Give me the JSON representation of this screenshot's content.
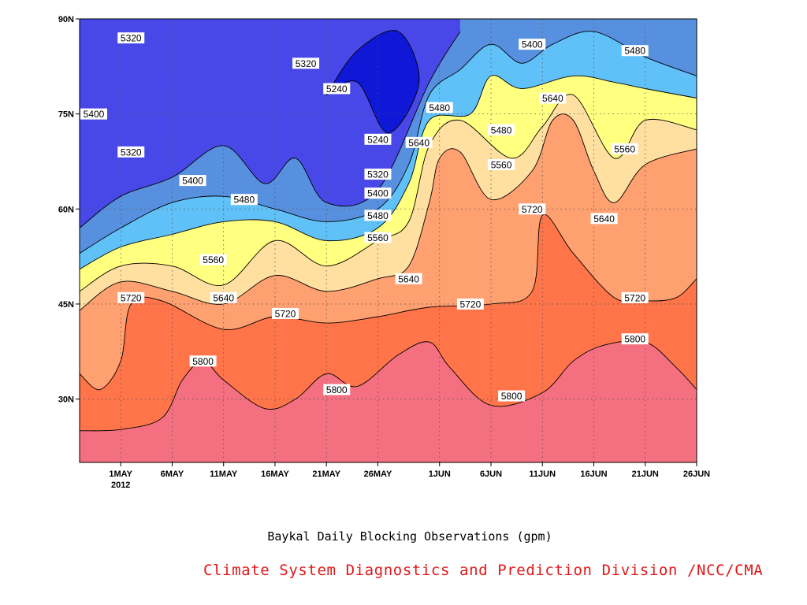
{
  "chart_data": {
    "type": "contour",
    "title": "",
    "caption": "Baykal Daily Blocking Observations (gpm)",
    "credit": "Climate System Diagnostics and Prediction Division /NCC/CMA",
    "x_axis": {
      "start": "2012-04-27",
      "end": "2012-06-26",
      "ticks": [
        {
          "label": "1MAY",
          "sublabel": "2012",
          "date": "2012-05-01"
        },
        {
          "label": "6MAY",
          "sublabel": "",
          "date": "2012-05-06"
        },
        {
          "label": "11MAY",
          "sublabel": "",
          "date": "2012-05-11"
        },
        {
          "label": "16MAY",
          "sublabel": "",
          "date": "2012-05-16"
        },
        {
          "label": "21MAY",
          "sublabel": "",
          "date": "2012-05-21"
        },
        {
          "label": "26MAY",
          "sublabel": "",
          "date": "2012-05-26"
        },
        {
          "label": "1JUN",
          "sublabel": "",
          "date": "2012-06-01"
        },
        {
          "label": "6JUN",
          "sublabel": "",
          "date": "2012-06-06"
        },
        {
          "label": "11JUN",
          "sublabel": "",
          "date": "2012-06-11"
        },
        {
          "label": "16JUN",
          "sublabel": "",
          "date": "2012-06-16"
        },
        {
          "label": "21JUN",
          "sublabel": "",
          "date": "2012-06-21"
        },
        {
          "label": "26JUN",
          "sublabel": "",
          "date": "2012-06-26"
        }
      ]
    },
    "y_axis": {
      "range": [
        20,
        90
      ],
      "ticks": [
        {
          "label": "30N",
          "value": 30
        },
        {
          "label": "45N",
          "value": 45
        },
        {
          "label": "60N",
          "value": 60
        },
        {
          "label": "75N",
          "value": 75
        },
        {
          "label": "90N",
          "value": 90
        }
      ]
    },
    "grid": true,
    "levels": [
      5240,
      5320,
      5400,
      5480,
      5560,
      5640,
      5720,
      5800
    ],
    "fill_colors": {
      "below_5240": "#1018d8",
      "5240_5320": "#4848e8",
      "5320_5400": "#5890e0",
      "5400_5480": "#60c0f8",
      "5480_5560": "#ffff80",
      "5560_5640": "#ffe0a0",
      "5640_5720": "#ffa070",
      "5720_5800": "#ff7448",
      "above_5800": "#f47080"
    },
    "contours": [
      {
        "value": 5800,
        "points": [
          [
            "2012-04-27",
            25
          ],
          [
            "2012-05-01",
            25.2
          ],
          [
            "2012-05-05",
            27
          ],
          [
            "2012-05-07",
            33
          ],
          [
            "2012-05-09",
            36
          ],
          [
            "2012-05-11",
            33
          ],
          [
            "2012-05-15",
            28.5
          ],
          [
            "2012-05-18",
            30
          ],
          [
            "2012-05-21",
            34
          ],
          [
            "2012-05-24",
            32
          ],
          [
            "2012-05-28",
            37
          ],
          [
            "2012-05-31",
            39
          ],
          [
            "2012-06-02",
            35
          ],
          [
            "2012-06-06",
            29
          ],
          [
            "2012-06-11",
            31
          ],
          [
            "2012-06-14",
            36
          ],
          [
            "2012-06-17",
            38.5
          ],
          [
            "2012-06-21",
            39
          ],
          [
            "2012-06-24",
            35
          ],
          [
            "2012-06-26",
            31.5
          ]
        ]
      },
      {
        "value": 5720,
        "points": [
          [
            "2012-04-27",
            34
          ],
          [
            "2012-04-29",
            31.5
          ],
          [
            "2012-05-01",
            36
          ],
          [
            "2012-05-02",
            45
          ],
          [
            "2012-05-05",
            45.5
          ],
          [
            "2012-05-11",
            41
          ],
          [
            "2012-05-16",
            43
          ],
          [
            "2012-05-21",
            42
          ],
          [
            "2012-05-26",
            43
          ],
          [
            "2012-05-31",
            44.5
          ],
          [
            "2012-06-06",
            45
          ],
          [
            "2012-06-10",
            47
          ],
          [
            "2012-06-11",
            59
          ],
          [
            "2012-06-14",
            53
          ],
          [
            "2012-06-18",
            46
          ],
          [
            "2012-06-21",
            45.5
          ],
          [
            "2012-06-24",
            46
          ],
          [
            "2012-06-26",
            49
          ]
        ]
      },
      {
        "value": 5640,
        "points": [
          [
            "2012-04-27",
            44
          ],
          [
            "2012-05-01",
            48.5
          ],
          [
            "2012-05-06",
            47
          ],
          [
            "2012-05-11",
            45
          ],
          [
            "2012-05-16",
            49.5
          ],
          [
            "2012-05-21",
            47
          ],
          [
            "2012-05-26",
            49
          ],
          [
            "2012-05-29",
            51
          ],
          [
            "2012-05-31",
            61
          ],
          [
            "2012-06-01",
            68
          ],
          [
            "2012-06-03",
            69
          ],
          [
            "2012-06-06",
            61.5
          ],
          [
            "2012-06-10",
            66
          ],
          [
            "2012-06-12",
            74
          ],
          [
            "2012-06-14",
            74
          ],
          [
            "2012-06-16",
            66
          ],
          [
            "2012-06-18",
            61
          ],
          [
            "2012-06-21",
            67
          ],
          [
            "2012-06-26",
            69.5
          ]
        ]
      },
      {
        "value": 5560,
        "points": [
          [
            "2012-04-27",
            47
          ],
          [
            "2012-05-01",
            51
          ],
          [
            "2012-05-06",
            51
          ],
          [
            "2012-05-11",
            48
          ],
          [
            "2012-05-16",
            55
          ],
          [
            "2012-05-21",
            51
          ],
          [
            "2012-05-26",
            55
          ],
          [
            "2012-05-29",
            58
          ],
          [
            "2012-05-31",
            70
          ],
          [
            "2012-06-03",
            74
          ],
          [
            "2012-06-08",
            68
          ],
          [
            "2012-06-11",
            73
          ],
          [
            "2012-06-14",
            78
          ],
          [
            "2012-06-18",
            68
          ],
          [
            "2012-06-21",
            74
          ],
          [
            "2012-06-26",
            72.5
          ]
        ]
      },
      {
        "value": 5480,
        "points": [
          [
            "2012-04-27",
            50.5
          ],
          [
            "2012-05-01",
            54
          ],
          [
            "2012-05-06",
            56
          ],
          [
            "2012-05-11",
            58
          ],
          [
            "2012-05-16",
            58
          ],
          [
            "2012-05-21",
            55
          ],
          [
            "2012-05-26",
            57
          ],
          [
            "2012-05-29",
            64
          ],
          [
            "2012-05-31",
            74
          ],
          [
            "2012-06-04",
            75
          ],
          [
            "2012-06-06",
            81
          ],
          [
            "2012-06-09",
            79
          ],
          [
            "2012-06-14",
            81
          ],
          [
            "2012-06-18",
            80
          ],
          [
            "2012-06-21",
            79
          ],
          [
            "2012-06-26",
            77.5
          ]
        ]
      },
      {
        "value": 5400,
        "points": [
          [
            "2012-04-27",
            53
          ],
          [
            "2012-05-01",
            57
          ],
          [
            "2012-05-06",
            61
          ],
          [
            "2012-05-11",
            62
          ],
          [
            "2012-05-16",
            60
          ],
          [
            "2012-05-21",
            58
          ],
          [
            "2012-05-26",
            60
          ],
          [
            "2012-05-29",
            67
          ],
          [
            "2012-05-31",
            78
          ],
          [
            "2012-06-03",
            82
          ],
          [
            "2012-06-06",
            86
          ],
          [
            "2012-06-09",
            83
          ],
          [
            "2012-06-12",
            86
          ],
          [
            "2012-06-16",
            88
          ],
          [
            "2012-06-21",
            84
          ],
          [
            "2012-06-26",
            81
          ]
        ]
      },
      {
        "value": 5320,
        "points": [
          [
            "2012-04-27",
            57
          ],
          [
            "2012-05-01",
            62
          ],
          [
            "2012-05-06",
            65
          ],
          [
            "2012-05-11",
            70
          ],
          [
            "2012-05-15",
            64
          ],
          [
            "2012-05-18",
            68
          ],
          [
            "2012-05-21",
            61
          ],
          [
            "2012-05-26",
            63
          ],
          [
            "2012-05-31",
            80
          ],
          [
            "2012-06-03",
            88
          ]
        ]
      },
      {
        "value": 5240,
        "points": [
          [
            "2012-05-21",
            78
          ],
          [
            "2012-05-24",
            80
          ],
          [
            "2012-05-27",
            72
          ],
          [
            "2012-05-30",
            80
          ],
          [
            "2012-05-28",
            88
          ],
          [
            "2012-05-24",
            85
          ]
        ]
      }
    ],
    "contour_labels": [
      {
        "text": "5320",
        "date": "2012-05-02",
        "lat": 87
      },
      {
        "text": "5400",
        "date": "2012-04-27",
        "lat": 75
      },
      {
        "text": "5320",
        "date": "2012-05-02",
        "lat": 69
      },
      {
        "text": "5400",
        "date": "2012-05-08",
        "lat": 64.5
      },
      {
        "text": "5480",
        "date": "2012-05-13",
        "lat": 61.5
      },
      {
        "text": "5560",
        "date": "2012-05-10",
        "lat": 52
      },
      {
        "text": "5720",
        "date": "2012-05-02",
        "lat": 46
      },
      {
        "text": "5640",
        "date": "2012-05-11",
        "lat": 46
      },
      {
        "text": "5720",
        "date": "2012-05-17",
        "lat": 43.5
      },
      {
        "text": "5800",
        "date": "2012-05-09",
        "lat": 36
      },
      {
        "text": "5800",
        "date": "2012-05-22",
        "lat": 31.5
      },
      {
        "text": "5320",
        "date": "2012-05-19",
        "lat": 83
      },
      {
        "text": "5240",
        "date": "2012-05-22",
        "lat": 79
      },
      {
        "text": "5240",
        "date": "2012-05-26",
        "lat": 71
      },
      {
        "text": "5320",
        "date": "2012-05-26",
        "lat": 65.5
      },
      {
        "text": "5400",
        "date": "2012-05-26",
        "lat": 62.5
      },
      {
        "text": "5480",
        "date": "2012-05-26",
        "lat": 59
      },
      {
        "text": "5560",
        "date": "2012-05-26",
        "lat": 55.5
      },
      {
        "text": "5640",
        "date": "2012-05-29",
        "lat": 49
      },
      {
        "text": "5640",
        "date": "2012-05-30",
        "lat": 70.5
      },
      {
        "text": "5480",
        "date": "2012-06-01",
        "lat": 76
      },
      {
        "text": "5720",
        "date": "2012-06-04",
        "lat": 45
      },
      {
        "text": "5480",
        "date": "2012-06-07",
        "lat": 72.5
      },
      {
        "text": "5560",
        "date": "2012-06-07",
        "lat": 67
      },
      {
        "text": "5800",
        "date": "2012-06-08",
        "lat": 30.5
      },
      {
        "text": "5400",
        "date": "2012-06-10",
        "lat": 86
      },
      {
        "text": "5720",
        "date": "2012-06-10",
        "lat": 60
      },
      {
        "text": "5640",
        "date": "2012-06-12",
        "lat": 77.5
      },
      {
        "text": "5640",
        "date": "2012-06-17",
        "lat": 58.5
      },
      {
        "text": "5560",
        "date": "2012-06-19",
        "lat": 69.5
      },
      {
        "text": "5480",
        "date": "2012-06-20",
        "lat": 85
      },
      {
        "text": "5720",
        "date": "2012-06-20",
        "lat": 46
      },
      {
        "text": "5800",
        "date": "2012-06-20",
        "lat": 39.5
      }
    ]
  }
}
